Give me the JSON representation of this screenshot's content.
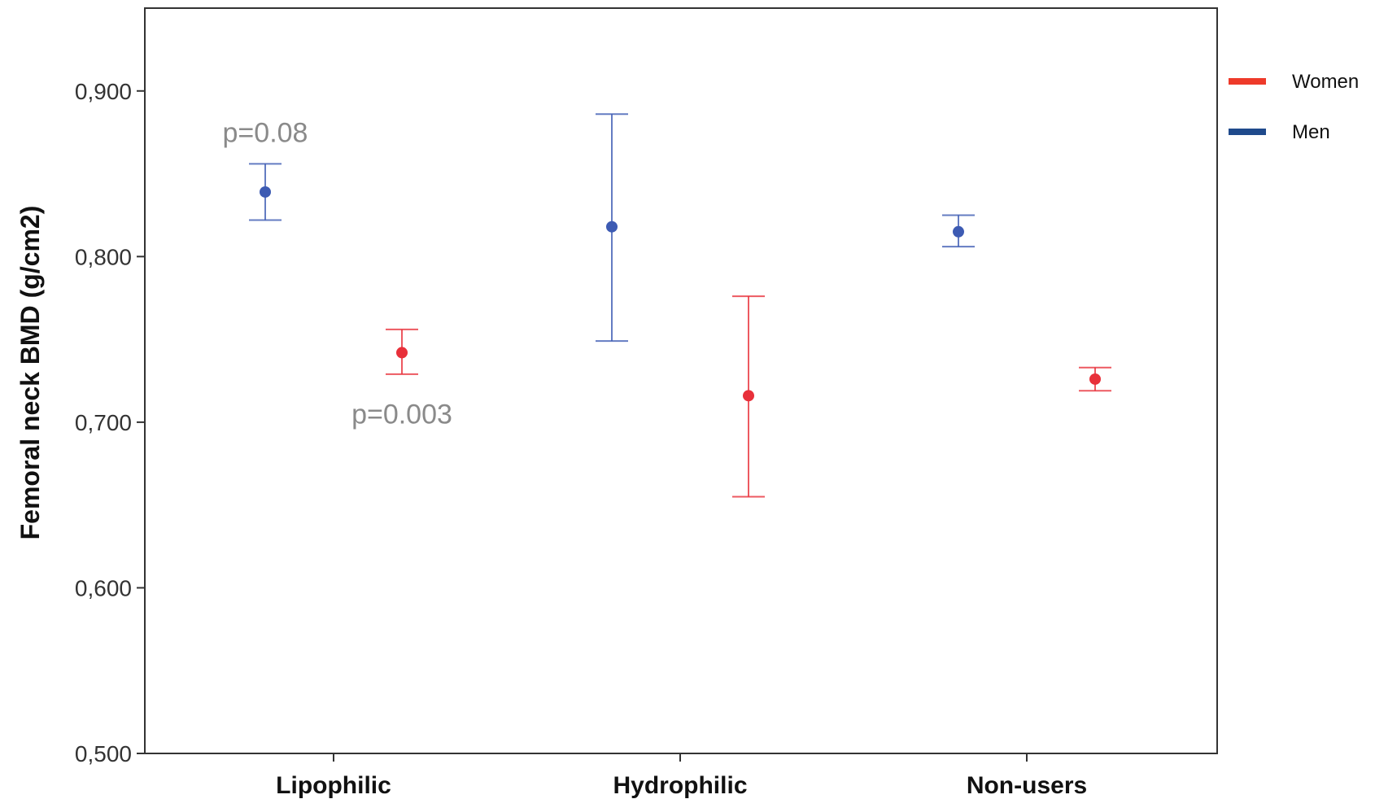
{
  "chart_data": {
    "type": "errorbar",
    "categories": [
      "Lipophilic",
      "Hydrophilic",
      "Non-users"
    ],
    "ylabel": "Femoral neck BMD (g/cm2)",
    "xlabel": "",
    "ylim": [
      0.5,
      0.95
    ],
    "yticks": [
      {
        "value": 0.5,
        "label": "0,500"
      },
      {
        "value": 0.6,
        "label": "0,600"
      },
      {
        "value": 0.7,
        "label": "0,700"
      },
      {
        "value": 0.8,
        "label": "0,800"
      },
      {
        "value": 0.9,
        "label": "0,900"
      }
    ],
    "grid": false,
    "legend_position": "right-top",
    "series": [
      {
        "name": "Women",
        "color": "#e8303a",
        "legend_color": "#ee3a2a",
        "values": [
          0.742,
          0.716,
          0.726
        ],
        "lower": [
          0.729,
          0.655,
          0.719
        ],
        "upper": [
          0.756,
          0.776,
          0.733
        ]
      },
      {
        "name": "Men",
        "color": "#3d5bb3",
        "legend_color": "#1f4a8c",
        "values": [
          0.839,
          0.818,
          0.815
        ],
        "lower": [
          0.822,
          0.749,
          0.806
        ],
        "upper": [
          0.856,
          0.886,
          0.825
        ]
      }
    ],
    "annotations": [
      {
        "text": "p=0.08",
        "category": 0,
        "series": 1,
        "value": 0.875
      },
      {
        "text": "p=0.003",
        "category": 0,
        "series": 0,
        "value": 0.705
      }
    ]
  }
}
